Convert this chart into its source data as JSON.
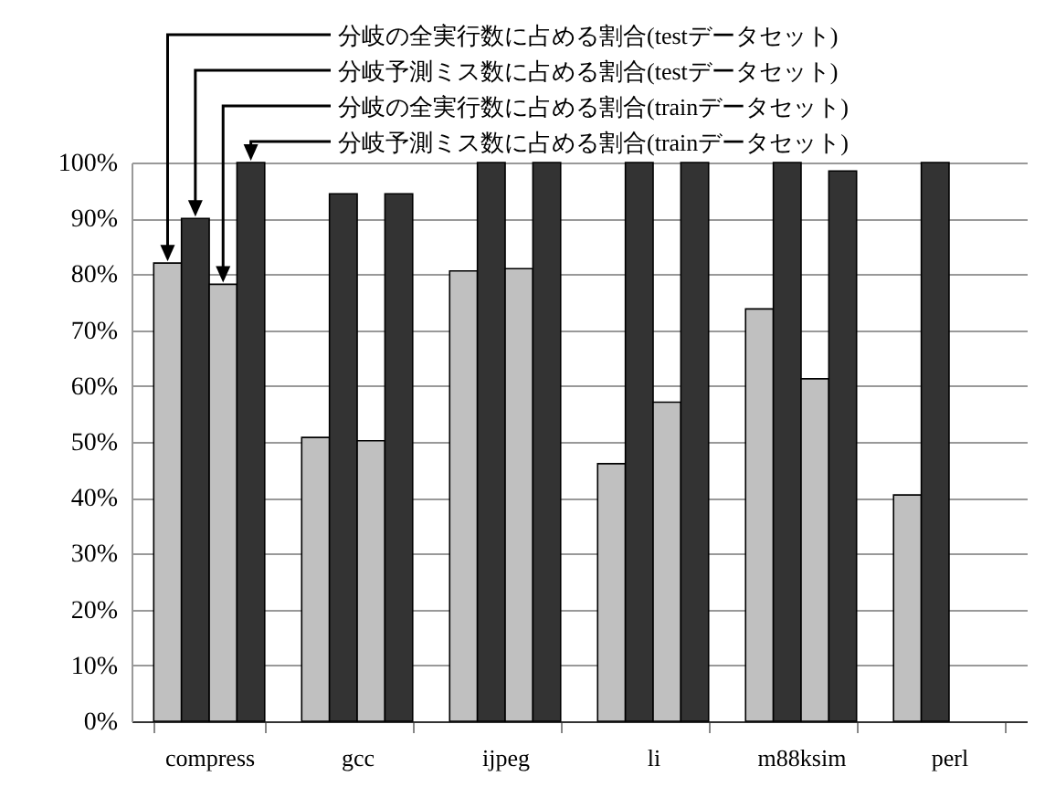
{
  "chart_data": {
    "type": "bar",
    "categories": [
      "compress",
      "gcc",
      "ijpeg",
      "li",
      "m88ksim",
      "perl"
    ],
    "series": [
      {
        "name": "分岐の全実行数に占める割合(testデータセット)",
        "color": "#c0c0c0",
        "values": [
          82,
          50.8,
          80.6,
          46.1,
          73.8,
          40.5
        ]
      },
      {
        "name": "分岐予測ミス数に占める割合(testデータセット)",
        "color": "#333333",
        "values": [
          90,
          94.4,
          100,
          100,
          100,
          100
        ]
      },
      {
        "name": "分岐の全実行数に占める割合(trainデータセット)",
        "color": "#c0c0c0",
        "values": [
          78.2,
          50.2,
          81,
          57.1,
          61.3,
          null
        ]
      },
      {
        "name": "分岐予測ミス数に占める割合(trainデータセット)",
        "color": "#333333",
        "values": [
          100,
          94.4,
          100,
          100,
          98.5,
          null
        ]
      }
    ],
    "ylim": [
      0,
      100
    ],
    "yticks": [
      {
        "value": 0,
        "label": "0%"
      },
      {
        "value": 10,
        "label": "10%"
      },
      {
        "value": 20,
        "label": "20%"
      },
      {
        "value": 30,
        "label": "30%"
      },
      {
        "value": 40,
        "label": "40%"
      },
      {
        "value": 50,
        "label": "50%"
      },
      {
        "value": 60,
        "label": "60%"
      },
      {
        "value": 70,
        "label": "70%"
      },
      {
        "value": 80,
        "label": "80%"
      },
      {
        "value": 90,
        "label": "90%"
      },
      {
        "value": 100,
        "label": "100%"
      }
    ],
    "grid": "y"
  }
}
